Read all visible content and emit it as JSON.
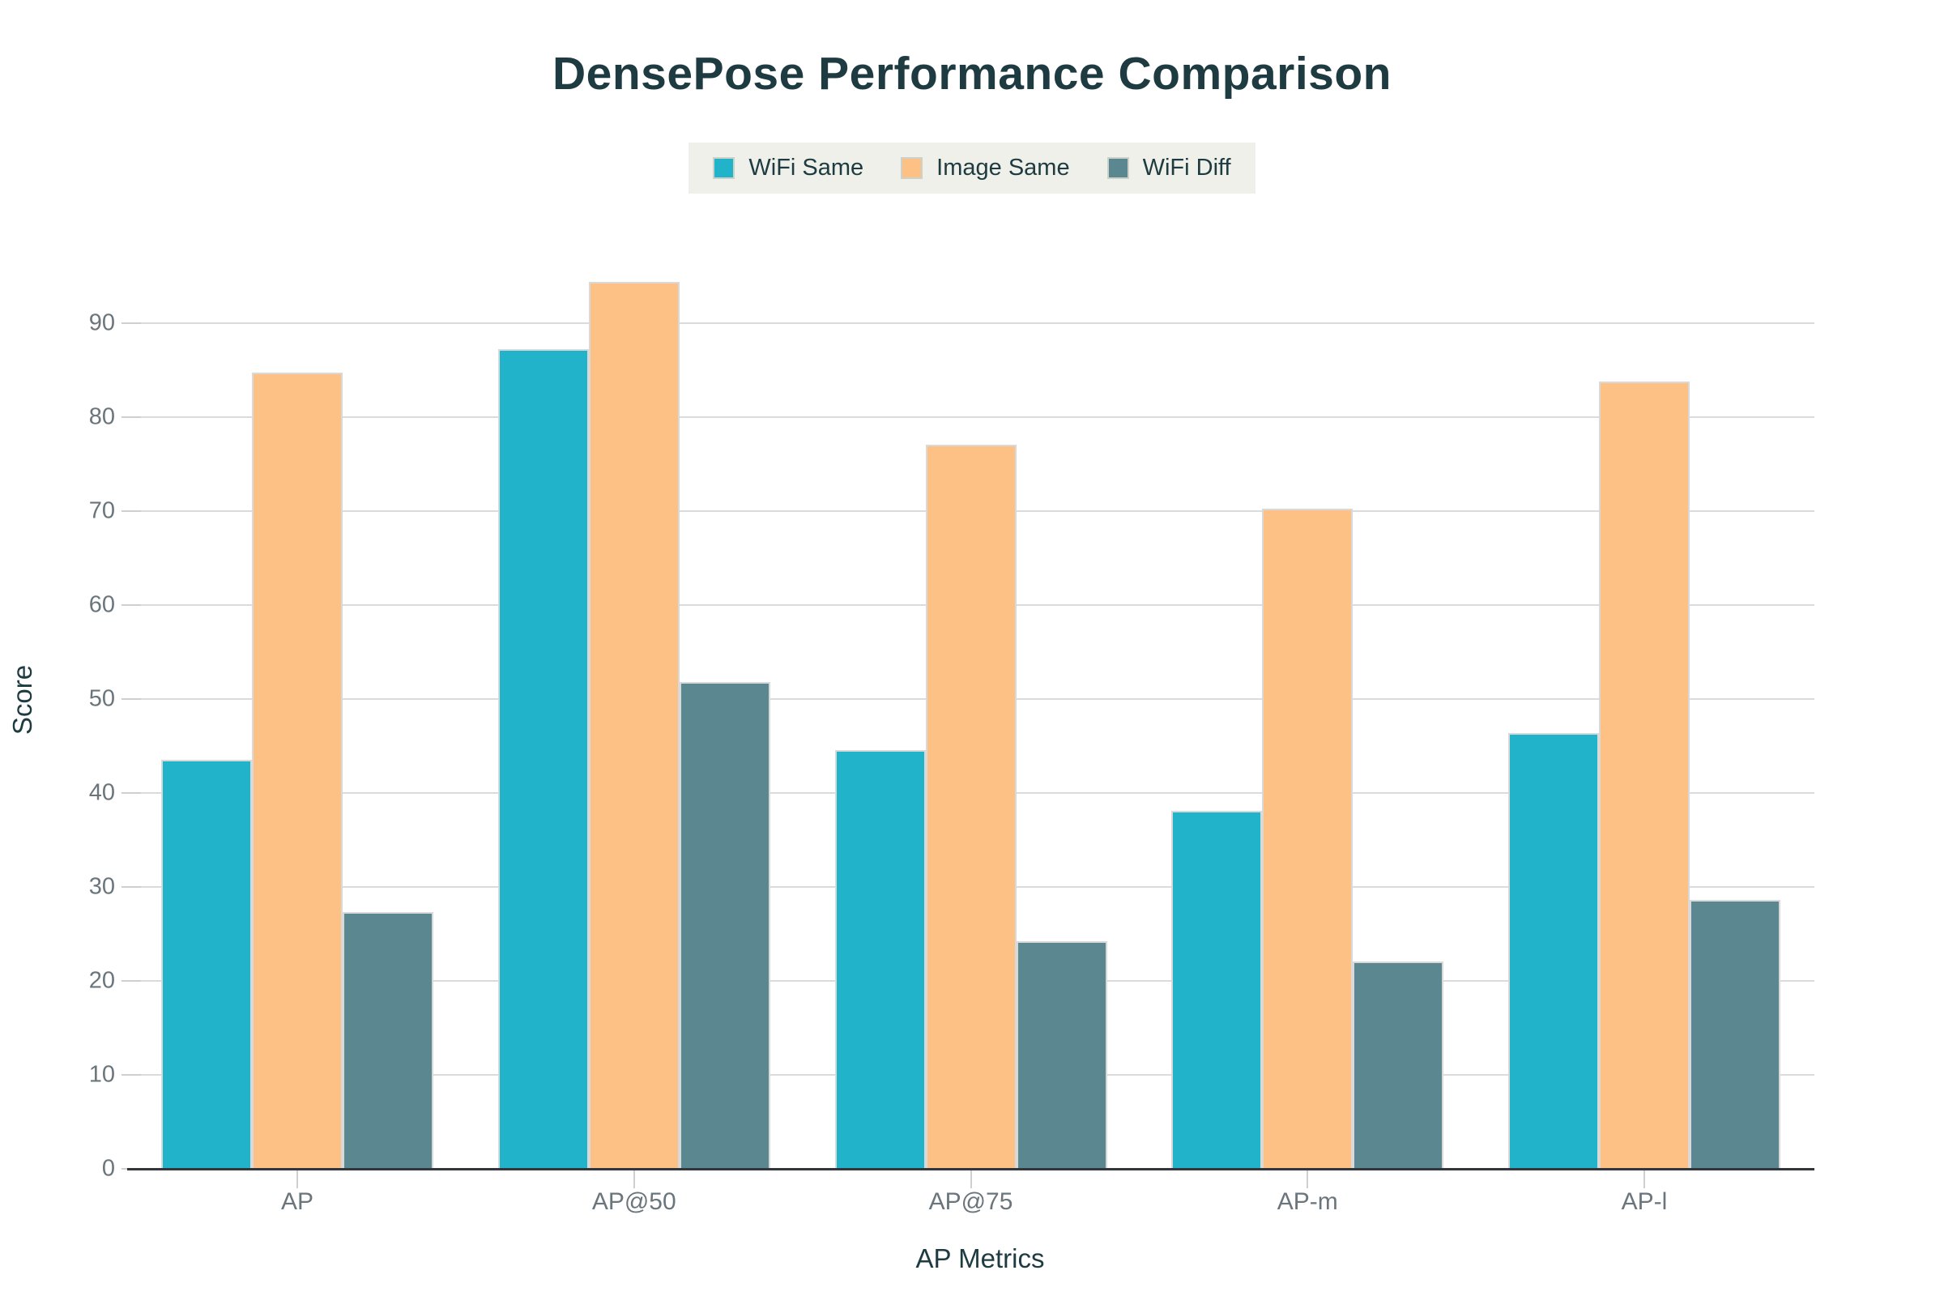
{
  "title": "DensePose Performance Comparison",
  "legend": {
    "items": [
      {
        "label": "WiFi Same",
        "color": "#21b3c9"
      },
      {
        "label": "Image Same",
        "color": "#fdc085"
      },
      {
        "label": "WiFi Diff",
        "color": "#5b8791"
      }
    ]
  },
  "axes": {
    "x_title": "AP Metrics",
    "y_title": "Score"
  },
  "chart_data": {
    "type": "bar",
    "title": "DensePose Performance Comparison",
    "xlabel": "AP Metrics",
    "ylabel": "Score",
    "categories": [
      "AP",
      "AP@50",
      "AP@75",
      "AP-m",
      "AP-l"
    ],
    "series": [
      {
        "name": "WiFi Same",
        "color": "#21b3c9",
        "values": [
          43.5,
          87.2,
          44.6,
          38.1,
          46.4
        ]
      },
      {
        "name": "Image Same",
        "color": "#fdc085",
        "values": [
          84.7,
          94.4,
          77.1,
          70.3,
          83.8
        ]
      },
      {
        "name": "WiFi Diff",
        "color": "#5b8791",
        "values": [
          27.3,
          51.8,
          24.2,
          22.1,
          28.6
        ]
      }
    ],
    "ylim": [
      0,
      96
    ],
    "yticks": [
      0,
      10,
      20,
      30,
      40,
      50,
      60,
      70,
      80,
      90
    ],
    "grid": true,
    "legend_position": "top-center",
    "colors": {
      "title_text": "#1d3b41",
      "tick_text": "#6b757c",
      "gridline": "#dbdbdb",
      "axis_line": "#31373c",
      "legend_background": "#eef0e9",
      "background": "#ffffff"
    }
  }
}
